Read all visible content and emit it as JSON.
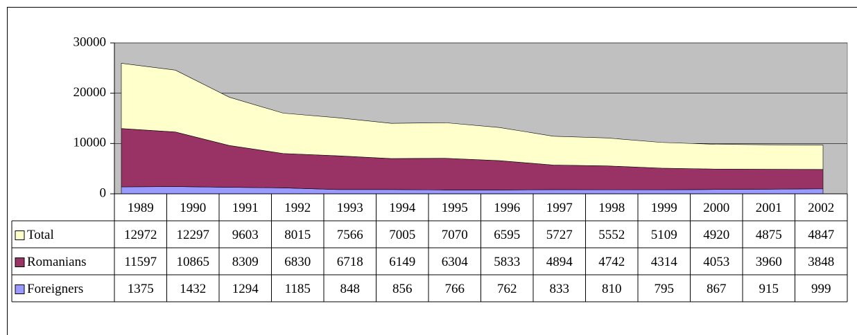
{
  "chart_data": {
    "type": "stacked_area",
    "categories": [
      "1989",
      "1990",
      "1991",
      "1992",
      "1993",
      "1994",
      "1995",
      "1996",
      "1997",
      "1998",
      "1999",
      "2000",
      "2001",
      "2002"
    ],
    "series": [
      {
        "name": "Total",
        "color": "#ffffcc",
        "values": [
          12972,
          12297,
          9603,
          8015,
          7566,
          7005,
          7070,
          6595,
          5727,
          5552,
          5109,
          4920,
          4875,
          4847
        ]
      },
      {
        "name": "Romanians",
        "color": "#993366",
        "values": [
          11597,
          10865,
          8309,
          6830,
          6718,
          6149,
          6304,
          5833,
          4894,
          4742,
          4314,
          4053,
          3960,
          3848
        ]
      },
      {
        "name": "Foreigners",
        "color": "#9999ff",
        "values": [
          1375,
          1432,
          1294,
          1185,
          848,
          856,
          766,
          762,
          833,
          810,
          795,
          867,
          915,
          999
        ]
      }
    ],
    "ylim": [
      0,
      30000
    ],
    "yticks": [
      0,
      10000,
      20000,
      30000
    ],
    "grid": true,
    "plot_background": "#c0c0c0"
  }
}
